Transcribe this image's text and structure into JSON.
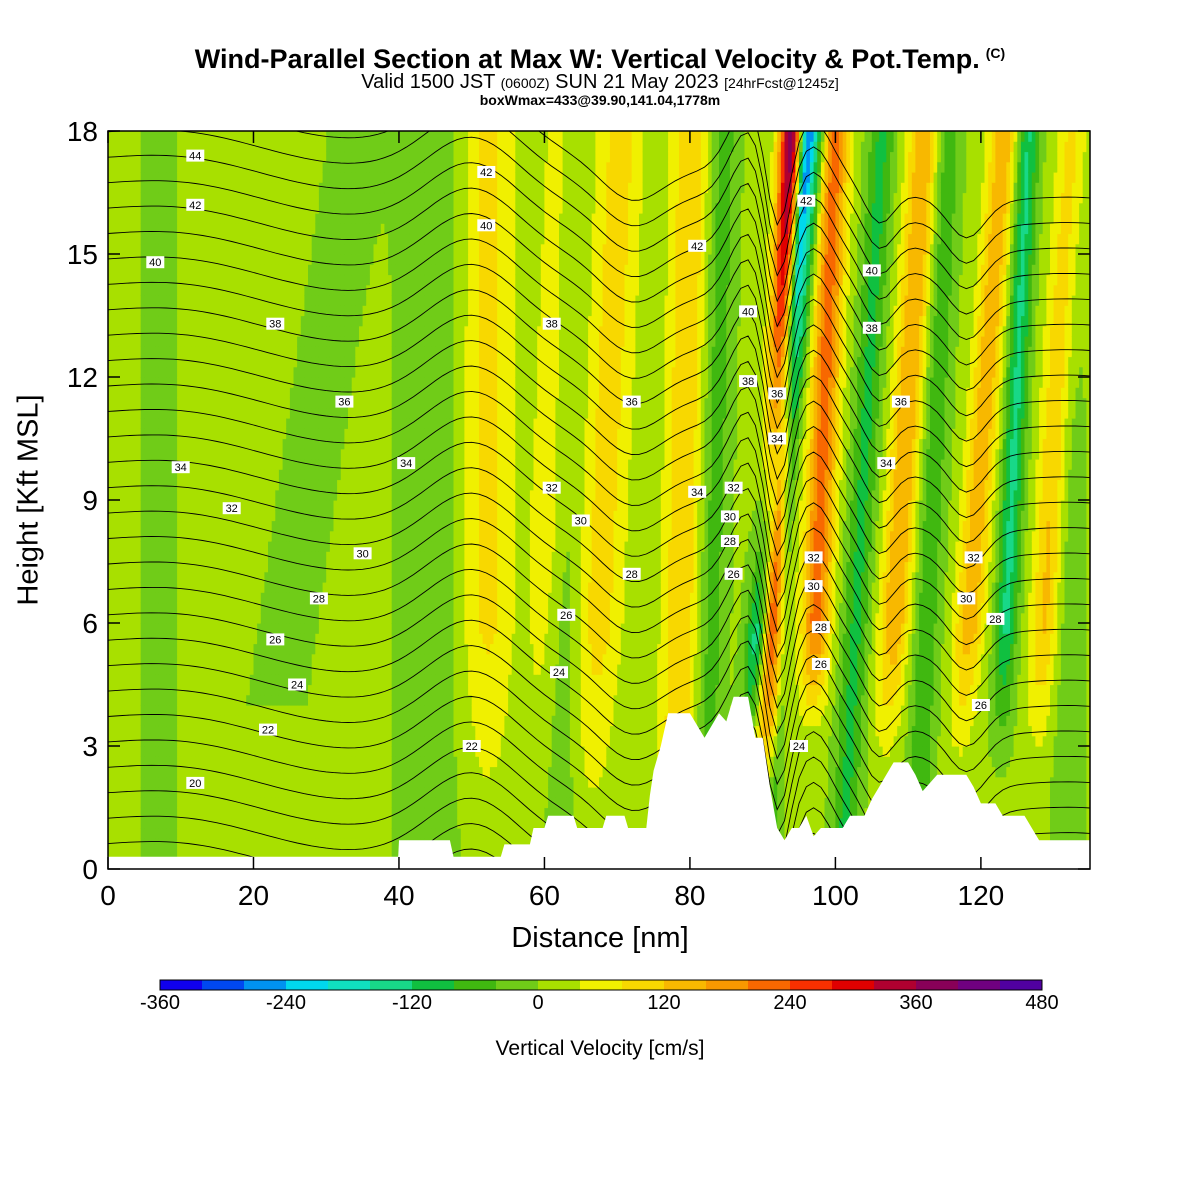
{
  "title": "Wind-Parallel Section at Max W: Vertical Velocity & Pot.Temp.",
  "copyright": "(C)",
  "subtitle_main": "Valid 1500 JST",
  "subtitle_utc": "(0600Z)",
  "subtitle_date": "SUN 21 May 2023",
  "subtitle_fcst": "[24hrFcst@1245z]",
  "info": "boxWmax=433@39.90,141.04,1778m",
  "chart_data": {
    "type": "heatmap",
    "title": "Wind-Parallel Section at Max W: Vertical Velocity & Pot.Temp.",
    "xlabel": "Distance [nm]",
    "ylabel": "Height [Kft MSL]",
    "xlim": [
      0,
      135
    ],
    "ylim": [
      0,
      18
    ],
    "x_ticks": [
      0,
      20,
      40,
      60,
      80,
      100,
      120
    ],
    "y_ticks": [
      0,
      3,
      6,
      9,
      12,
      15,
      18
    ],
    "colorbar": {
      "title": "Vertical Velocity [cm/s]",
      "labels": [
        -360,
        -240,
        -120,
        0,
        120,
        240,
        360,
        480
      ],
      "levels": [
        -360,
        -320,
        -280,
        -240,
        -200,
        -160,
        -120,
        -80,
        -40,
        0,
        40,
        80,
        120,
        160,
        200,
        240,
        280,
        320,
        360,
        400,
        440,
        480
      ],
      "colors": [
        "#1000ee",
        "#0048f0",
        "#0092f0",
        "#00d8ee",
        "#10e0c0",
        "#18d888",
        "#10c040",
        "#40b810",
        "#70cc18",
        "#a8e000",
        "#f0f000",
        "#f8d800",
        "#f8b800",
        "#f89800",
        "#f86800",
        "#f83000",
        "#e00000",
        "#b00030",
        "#880058",
        "#700080",
        "#5000a0"
      ]
    },
    "terrain_kft": [
      [
        0,
        0.3
      ],
      [
        39.9,
        0.3
      ],
      [
        40,
        0.7
      ],
      [
        47,
        0.7
      ],
      [
        47.5,
        0.3
      ],
      [
        54,
        0.3
      ],
      [
        54.5,
        0.6
      ],
      [
        58,
        0.6
      ],
      [
        58.5,
        1.0
      ],
      [
        60,
        1.0
      ],
      [
        60.5,
        1.3
      ],
      [
        64,
        1.3
      ],
      [
        64.5,
        1.0
      ],
      [
        68,
        1.0
      ],
      [
        68.5,
        1.3
      ],
      [
        71,
        1.3
      ],
      [
        71.5,
        1.0
      ],
      [
        74,
        1.0
      ],
      [
        74.5,
        1.8
      ],
      [
        75,
        2.4
      ],
      [
        76,
        3.0
      ],
      [
        77,
        3.8
      ],
      [
        80,
        3.8
      ],
      [
        81,
        3.5
      ],
      [
        82,
        3.2
      ],
      [
        84,
        3.8
      ],
      [
        85,
        3.6
      ],
      [
        86,
        4.2
      ],
      [
        88,
        4.2
      ],
      [
        89,
        3.2
      ],
      [
        90,
        3.2
      ],
      [
        91,
        2.0
      ],
      [
        92,
        1.0
      ],
      [
        93,
        0.7
      ],
      [
        94,
        1.0
      ],
      [
        95,
        1.0
      ],
      [
        96,
        1.3
      ],
      [
        97,
        0.8
      ],
      [
        98,
        1.0
      ],
      [
        101,
        1.0
      ],
      [
        102,
        1.3
      ],
      [
        104,
        1.3
      ],
      [
        105,
        1.7
      ],
      [
        106,
        2.0
      ],
      [
        107,
        2.3
      ],
      [
        108,
        2.6
      ],
      [
        110,
        2.6
      ],
      [
        111,
        2.3
      ],
      [
        112,
        1.9
      ],
      [
        114,
        2.3
      ],
      [
        118,
        2.3
      ],
      [
        119,
        2.0
      ],
      [
        120,
        1.6
      ],
      [
        122,
        1.6
      ],
      [
        123,
        1.3
      ],
      [
        126,
        1.3
      ],
      [
        127,
        1.0
      ],
      [
        128,
        0.7
      ],
      [
        135,
        0.7
      ]
    ],
    "theta_labels": [
      {
        "x": 12,
        "y": 17.4,
        "value": "44"
      },
      {
        "x": 12,
        "y": 16.2,
        "value": "42"
      },
      {
        "x": 6.5,
        "y": 14.8,
        "value": "40"
      },
      {
        "x": 23,
        "y": 13.3,
        "value": "38"
      },
      {
        "x": 32.5,
        "y": 11.4,
        "value": "36"
      },
      {
        "x": 10,
        "y": 9.8,
        "value": "34"
      },
      {
        "x": 17,
        "y": 8.8,
        "value": "32"
      },
      {
        "x": 35,
        "y": 7.7,
        "value": "30"
      },
      {
        "x": 29,
        "y": 6.6,
        "value": "28"
      },
      {
        "x": 23,
        "y": 5.6,
        "value": "26"
      },
      {
        "x": 26,
        "y": 4.5,
        "value": "24"
      },
      {
        "x": 22,
        "y": 3.4,
        "value": "22"
      },
      {
        "x": 12,
        "y": 2.1,
        "value": "20"
      },
      {
        "x": 52,
        "y": 17.0,
        "value": "42"
      },
      {
        "x": 52,
        "y": 15.7,
        "value": "40"
      },
      {
        "x": 41,
        "y": 9.9,
        "value": "34"
      },
      {
        "x": 61,
        "y": 13.3,
        "value": "38"
      },
      {
        "x": 61,
        "y": 9.3,
        "value": "32"
      },
      {
        "x": 65,
        "y": 8.5,
        "value": "30"
      },
      {
        "x": 72,
        "y": 11.4,
        "value": "36"
      },
      {
        "x": 72,
        "y": 7.2,
        "value": "28"
      },
      {
        "x": 63,
        "y": 6.2,
        "value": "26"
      },
      {
        "x": 62,
        "y": 4.8,
        "value": "24"
      },
      {
        "x": 50,
        "y": 3.0,
        "value": "22"
      },
      {
        "x": 81,
        "y": 15.2,
        "value": "42"
      },
      {
        "x": 88,
        "y": 13.6,
        "value": "40"
      },
      {
        "x": 88,
        "y": 11.9,
        "value": "38"
      },
      {
        "x": 92,
        "y": 11.6,
        "value": "36"
      },
      {
        "x": 92,
        "y": 10.5,
        "value": "34"
      },
      {
        "x": 81,
        "y": 9.2,
        "value": "34"
      },
      {
        "x": 86,
        "y": 9.3,
        "value": "32"
      },
      {
        "x": 85.5,
        "y": 8.6,
        "value": "30"
      },
      {
        "x": 85.5,
        "y": 8.0,
        "value": "28"
      },
      {
        "x": 86,
        "y": 7.2,
        "value": "26"
      },
      {
        "x": 96,
        "y": 16.3,
        "value": "42"
      },
      {
        "x": 105,
        "y": 14.6,
        "value": "40"
      },
      {
        "x": 105,
        "y": 13.2,
        "value": "38"
      },
      {
        "x": 109,
        "y": 11.4,
        "value": "36"
      },
      {
        "x": 107,
        "y": 9.9,
        "value": "34"
      },
      {
        "x": 97,
        "y": 7.6,
        "value": "32"
      },
      {
        "x": 97,
        "y": 6.9,
        "value": "30"
      },
      {
        "x": 98,
        "y": 5.9,
        "value": "28"
      },
      {
        "x": 98,
        "y": 5.0,
        "value": "26"
      },
      {
        "x": 95,
        "y": 3.0,
        "value": "24"
      },
      {
        "x": 119,
        "y": 7.6,
        "value": "32"
      },
      {
        "x": 118,
        "y": 6.6,
        "value": "30"
      },
      {
        "x": 122,
        "y": 6.1,
        "value": "28"
      },
      {
        "x": 120,
        "y": 4.0,
        "value": "26"
      }
    ]
  }
}
